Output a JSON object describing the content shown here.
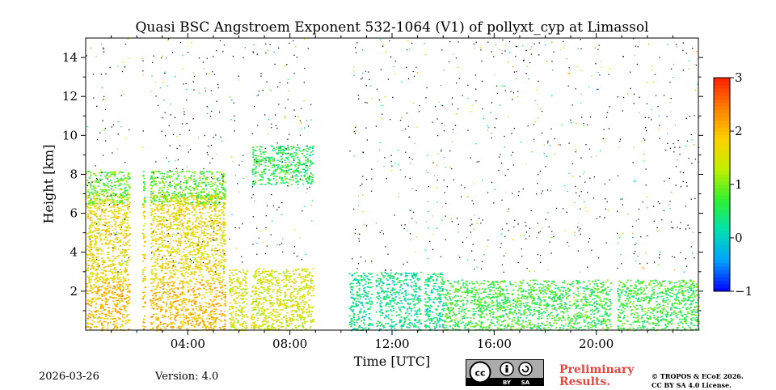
{
  "footer": {
    "date": "2026-03-26",
    "version": "Version: 4.0",
    "preliminary_line1": "Preliminary",
    "preliminary_line2": "Results.",
    "copyright_line1": "© TROPOS & ECoE 2026.",
    "copyright_line2": "CC BY SA 4.0 License.",
    "license_badge": {
      "cc": "cc",
      "by": "BY",
      "sa": "SA"
    }
  },
  "chart_data": {
    "type": "heatmap",
    "title": "Quasi BSC Angstroem Exponent 532-1064 (V1) of pollyxt_cyp at Limassol",
    "xlabel": "Time [UTC]",
    "ylabel": "Height [km]",
    "xlim_hours": [
      0,
      24
    ],
    "ylim_km": [
      0,
      15
    ],
    "x_ticks": [
      {
        "hour": 4,
        "label": "04:00"
      },
      {
        "hour": 8,
        "label": "08:00"
      },
      {
        "hour": 12,
        "label": "12:00"
      },
      {
        "hour": 16,
        "label": "16:00"
      },
      {
        "hour": 20,
        "label": "20:00"
      }
    ],
    "y_ticks": [
      {
        "km": 2,
        "label": "2"
      },
      {
        "km": 4,
        "label": "4"
      },
      {
        "km": 6,
        "label": "6"
      },
      {
        "km": 8,
        "label": "8"
      },
      {
        "km": 10,
        "label": "10"
      },
      {
        "km": 12,
        "label": "12"
      },
      {
        "km": 14,
        "label": "14"
      }
    ],
    "colorbar": {
      "min": -1,
      "max": 3,
      "ticks": [
        {
          "v": 3,
          "label": "3"
        },
        {
          "v": 2,
          "label": "2"
        },
        {
          "v": 1,
          "label": "1"
        },
        {
          "v": 0,
          "label": "0"
        },
        {
          "v": -1,
          "label": "−1"
        }
      ],
      "colormap": [
        "#0000ff",
        "#00a0ff",
        "#00e0b0",
        "#30f030",
        "#c0f000",
        "#ffd000",
        "#ff8000",
        "#ff2000"
      ]
    },
    "gaps_hours": [
      [
        1.7,
        2.2
      ],
      [
        2.3,
        2.5
      ],
      [
        5.45,
        5.6
      ],
      [
        6.3,
        6.45
      ],
      [
        8.9,
        10.3
      ],
      [
        11.2,
        11.35
      ],
      [
        13.1,
        13.25
      ],
      [
        20.55,
        20.8
      ]
    ],
    "regions": [
      {
        "name": "aerosol-layer-night",
        "t0": 0,
        "t1": 5.45,
        "h0": 0,
        "h1": 2.5,
        "value": 2.0
      },
      {
        "name": "lofted-layer-night",
        "t0": 0,
        "t1": 5.45,
        "h0": 2.5,
        "h1": 7.0,
        "value": 1.7
      },
      {
        "name": "cloud-top-night",
        "t0": 0,
        "t1": 5.45,
        "h0": 6.5,
        "h1": 8.2,
        "value": 0.9
      },
      {
        "name": "boundary-layer-morning",
        "t0": 5.6,
        "t1": 8.9,
        "h0": 0,
        "h1": 3.2,
        "value": 1.5
      },
      {
        "name": "cirrus-morning",
        "t0": 6.5,
        "t1": 8.9,
        "h0": 7.5,
        "h1": 9.5,
        "value": 0.6
      },
      {
        "name": "noon-columns",
        "t0": 10.3,
        "t1": 14,
        "h0": 0,
        "h1": 3.0,
        "value": 0.3
      },
      {
        "name": "boundary-layer-afternoon",
        "t0": 14,
        "t1": 24,
        "h0": 0,
        "h1": 2.6,
        "value": 0.7
      }
    ]
  }
}
